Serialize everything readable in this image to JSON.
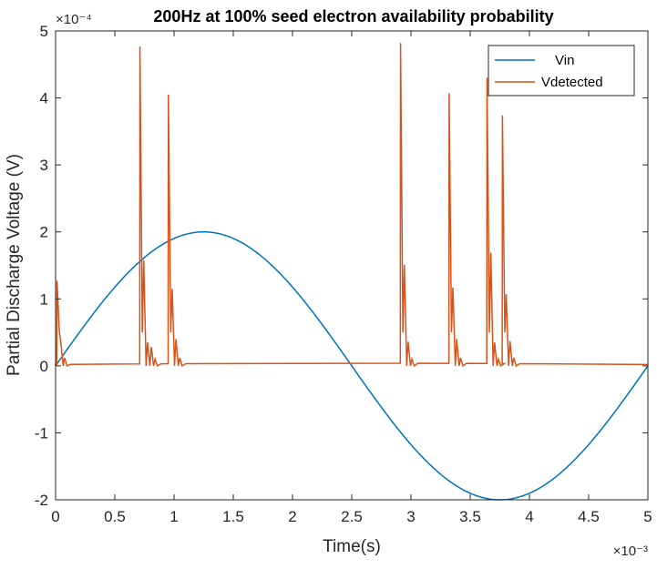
{
  "chart_data": {
    "type": "line",
    "title": "200Hz at 100% seed electron availability probability",
    "xlabel": "Time(s)",
    "ylabel": "Partial Discharge Voltage (V)",
    "x_multiplier": "×10⁻³",
    "y_multiplier": "×10⁻⁴",
    "xlim": [
      0,
      5
    ],
    "ylim": [
      -2,
      5
    ],
    "x_ticks": [
      0,
      0.5,
      1,
      1.5,
      2,
      2.5,
      3,
      3.5,
      4,
      4.5,
      5
    ],
    "x_tick_labels": [
      "0",
      "0.5",
      "1",
      "1.5",
      "2",
      "2.5",
      "3",
      "3.5",
      "4",
      "4.5",
      "5"
    ],
    "y_ticks": [
      -2,
      -1,
      0,
      1,
      2,
      3,
      4,
      5
    ],
    "y_tick_labels": [
      "-2",
      "-1",
      "0",
      "1",
      "2",
      "3",
      "4",
      "5"
    ],
    "legend_position": "top-right",
    "series": [
      {
        "name": "Vin",
        "color": "#0072BD",
        "kind": "sine",
        "amplitude": 2,
        "frequency_hz": 200,
        "x_range": [
          0,
          5
        ]
      },
      {
        "name": "Vdetected",
        "color": "#D95319",
        "kind": "pulses",
        "pulses": [
          {
            "t": 0.01,
            "peaks": [
              1.27,
              0.36,
              0.12
            ]
          },
          {
            "t": 0.71,
            "peaks": [
              4.77,
              1.58,
              0.35,
              0.28,
              0.1
            ]
          },
          {
            "t": 0.95,
            "peaks": [
              4.05,
              1.15,
              0.4,
              0.12
            ]
          },
          {
            "t": 2.91,
            "peaks": [
              4.82,
              1.51,
              0.36,
              0.1
            ]
          },
          {
            "t": 3.32,
            "peaks": [
              4.07,
              1.17,
              0.4,
              0.12
            ]
          },
          {
            "t": 3.64,
            "peaks": [
              4.3,
              1.69,
              0.35,
              0.1
            ]
          },
          {
            "t": 3.77,
            "peaks": [
              3.74,
              1.07,
              0.37,
              0.12
            ]
          }
        ]
      }
    ]
  }
}
